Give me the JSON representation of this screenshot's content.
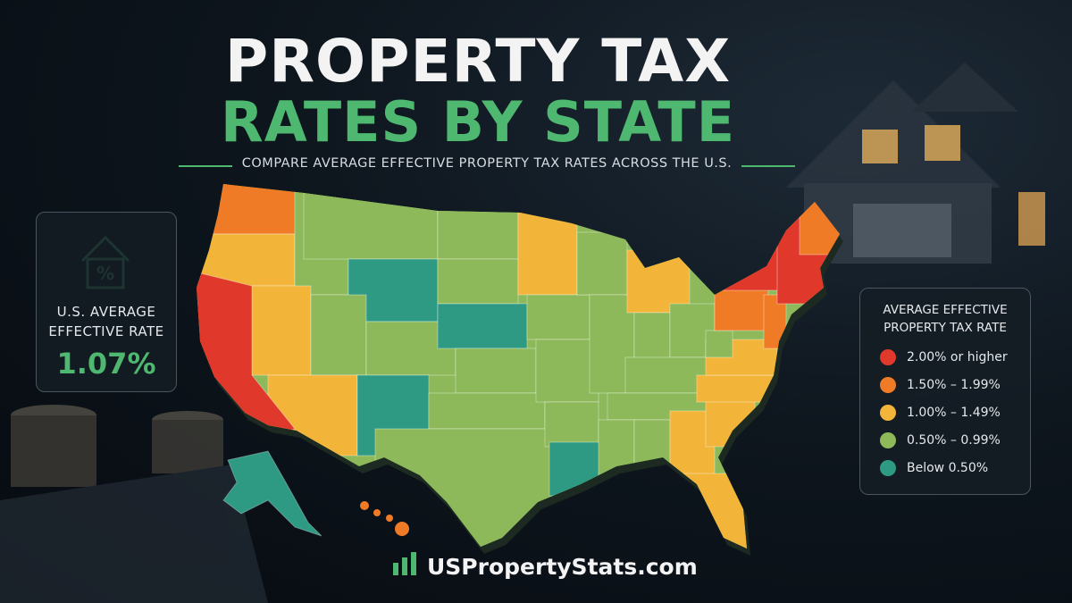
{
  "header": {
    "title_line1": "PROPERTY TAX",
    "title_line2": "RATES BY STATE",
    "subtitle": "COMPARE AVERAGE EFFECTIVE PROPERTY TAX RATES ACROSS THE U.S."
  },
  "stat": {
    "label_lines": [
      "U.S. AVERAGE",
      "EFFECTIVE RATE"
    ],
    "value": "1.07%"
  },
  "legend": {
    "title_lines": [
      "AVERAGE EFFECTIVE",
      "PROPERTY TAX RATE"
    ],
    "items": [
      {
        "label": "2.00% or higher",
        "color": "#e0392b"
      },
      {
        "label": "1.50% – 1.99%",
        "color": "#f07b27"
      },
      {
        "label": "1.00% – 1.49%",
        "color": "#f2b53a"
      },
      {
        "label": "0.50% – 0.99%",
        "color": "#8db95a"
      },
      {
        "label": "Below 0.50%",
        "color": "#2f9a84"
      }
    ]
  },
  "footer": {
    "brand": "USPropertyStats.com"
  }
}
